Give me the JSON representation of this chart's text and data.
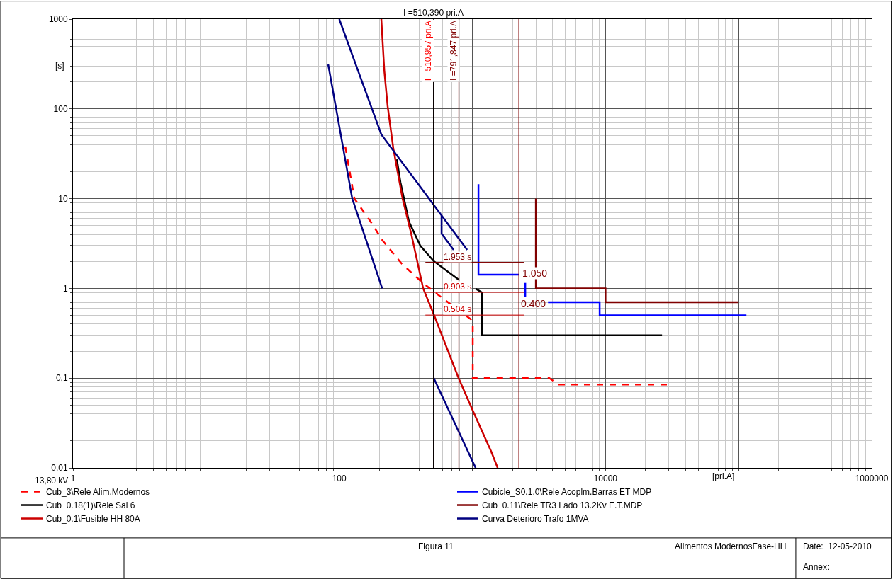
{
  "chart_data": {
    "type": "line",
    "xlabel": "[pri.A]",
    "ylabel": "[s]",
    "log": "xy",
    "grid": true,
    "legend": "bottom",
    "marker": "none",
    "xlim": [
      1,
      1000000
    ],
    "ylim": [
      0.01,
      1000
    ],
    "xticks": [
      1,
      {
        "value": 10,
        "label": null
      },
      100,
      {
        "value": 1000,
        "label": null
      },
      10000,
      {
        "value": 100000,
        "label": null
      },
      1000000
    ],
    "yticks": [
      {
        "value": 0.01,
        "label": "0,01"
      },
      {
        "value": 0.1,
        "label": "0,1"
      },
      1,
      10,
      100,
      1000
    ],
    "series": [
      {
        "name": "Cub_3\\Rele Alim.Modernos",
        "color": "#ff0000",
        "line_style": "dashed",
        "x": [
          111,
          130,
          172,
          212,
          296,
          427,
          656,
          1007,
          1007,
          3787,
          4440,
          30000
        ],
        "values": [
          38,
          10,
          5.55,
          3.4,
          1.87,
          1.14,
          0.7,
          0.437,
          0.1,
          0.1,
          0.085,
          0.085
        ]
      },
      {
        "name": "Cub_0.18(1)\\Rele Sal 6",
        "color": "#000000",
        "line_style": "solid",
        "x": [
          271,
          288,
          334,
          406,
          513,
          788,
          null,
          1058,
          1181,
          1181,
          26600
        ],
        "values": [
          27.4,
          15.3,
          5.55,
          2.99,
          2.01,
          1.25,
          null,
          0.99,
          0.9,
          0.3,
          0.3
        ]
      },
      {
        "name": "Cub_0.1\\Fusible HH 80A",
        "color": "#cc0000",
        "line_style": "solid",
        "x": [
          207,
          218,
          231,
          255,
          299,
          347,
          427,
          520,
          788,
          1007,
          1386,
          1548
        ],
        "values": [
          1000,
          266,
          107,
          36,
          10,
          4.08,
          1.0,
          0.487,
          0.1,
          0.0435,
          0.0152,
          0.01
        ]
      },
      {
        "name": "Cubicle_S0.1.0\\Rele Acoplm.Barras ET MDP",
        "color": "#0000ff",
        "line_style": "solid",
        "x": [
          1111,
          1111,
          2235,
          null,
          2496,
          2496,
          null,
          3700,
          9040,
          9040,
          114500
        ],
        "values": [
          14.5,
          1.42,
          1.42,
          null,
          1.15,
          0.8,
          null,
          0.7,
          0.7,
          0.5,
          0.5
        ]
      },
      {
        "name": "Cub_0.11\\Rele TR3 Lado 13.2Kv E.T.MDP",
        "color": "#800000",
        "line_style": "solid",
        "x": [
          3000,
          3000,
          10000,
          10000,
          100000
        ],
        "values": [
          10,
          1,
          1,
          0.7,
          0.7
        ]
      },
      {
        "name": "Curva Deterioro Trafo 1MVA",
        "color": "#000080",
        "line_style": "solid",
        "x": [
          82.6,
          125,
          210,
          null,
          100,
          207,
          914,
          null,
          587,
          587,
          723,
          null,
          513,
          1058
        ],
        "values": [
          313,
          10.1,
          1.0,
          null,
          1000,
          51.8,
          2.69,
          null,
          6.42,
          4.08,
          2.69,
          null,
          0.1,
          0.01
        ]
      }
    ],
    "ref_lines": [
      {
        "axis": "x",
        "value": 510.957,
        "label": "I =510,957 pri.A",
        "color": "#ff0000"
      },
      {
        "axis": "x",
        "value": 510.39,
        "label": "I =510,390 pri.A",
        "color": "#000000"
      },
      {
        "axis": "x",
        "value": 791.847,
        "label": "I =791,847 pri.A",
        "color": "#800000"
      },
      {
        "axis": "x",
        "value": 2235,
        "color": "#800000"
      },
      {
        "axis": "y",
        "value": 1.953,
        "label": "1.953 s",
        "color": "#800000"
      },
      {
        "axis": "y",
        "value": 0.903,
        "label": "0.903 s",
        "color": "#cc0000"
      },
      {
        "axis": "y",
        "value": 0.504,
        "label": "0.504 s",
        "color": "#cc0000"
      }
    ],
    "annotations": [
      "13,80 kV",
      "Figura 11",
      "Alimentos ModernosFase-HH",
      "Date:  12-05-2010",
      "Annex:",
      "1.050",
      "0.400"
    ]
  }
}
